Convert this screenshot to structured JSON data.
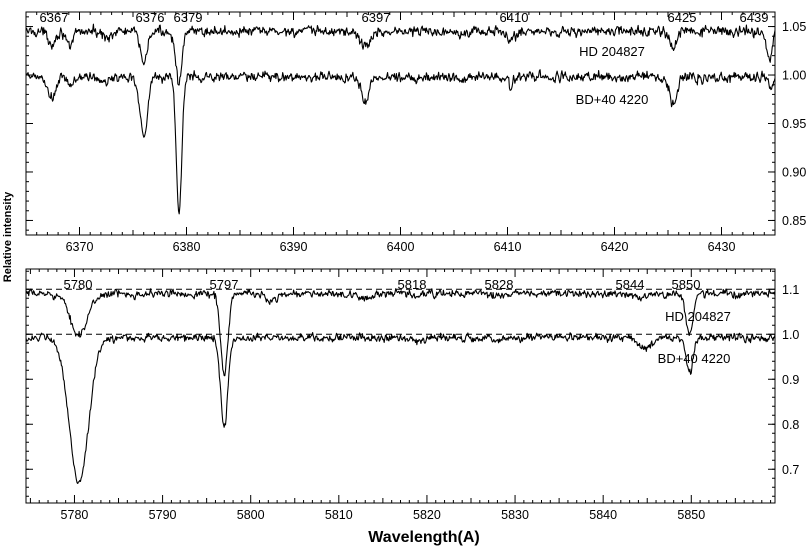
{
  "figure": {
    "ylabel": "Relative intensity",
    "xlabel": "Wavelength(A)"
  },
  "chart_data": [
    {
      "type": "line",
      "panel": "top",
      "xlim": [
        6365,
        6435
      ],
      "ylim": [
        0.835,
        1.065
      ],
      "xticks": [
        6370,
        6380,
        6390,
        6400,
        6410,
        6420,
        6430
      ],
      "yticks": [
        0.85,
        0.9,
        0.95,
        1.0,
        1.05
      ],
      "ytick_labels": [
        "0.85",
        "0.90",
        "0.95",
        "1.00",
        "1.05"
      ],
      "line_labels": [
        "6367",
        "6376",
        "6379",
        "6397",
        "6410",
        "6425",
        "6439"
      ],
      "series": [
        {
          "name": "HD 204827",
          "continuum": 1.045,
          "features": [
            [
              6367.4,
              0.012,
              0.35
            ],
            [
              6369.1,
              0.02,
              0.25
            ],
            [
              6372.5,
              0.006,
              0.4
            ],
            [
              6376.0,
              0.03,
              0.35
            ],
            [
              6379.3,
              0.052,
              0.3
            ],
            [
              6396.7,
              0.015,
              0.5
            ],
            [
              6410.2,
              0.009,
              0.4
            ],
            [
              6425.5,
              0.017,
              0.35
            ],
            [
              6434.5,
              0.03,
              0.25
            ]
          ],
          "noise": 0.0025
        },
        {
          "name": "BD+40 4220",
          "continuum": 0.998,
          "features": [
            [
              6367.4,
              0.022,
              0.4
            ],
            [
              6369.2,
              0.009,
              0.3
            ],
            [
              6372.3,
              0.007,
              0.4
            ],
            [
              6376.0,
              0.06,
              0.35
            ],
            [
              6379.3,
              0.14,
              0.25
            ],
            [
              6396.7,
              0.027,
              0.35
            ],
            [
              6410.2,
              0.007,
              0.4
            ],
            [
              6425.5,
              0.027,
              0.35
            ],
            [
              6434.6,
              0.012,
              0.25
            ]
          ],
          "noise": 0.0025
        }
      ]
    },
    {
      "type": "line",
      "panel": "bottom",
      "xlim": [
        5774.5,
        5859.5
      ],
      "ylim": [
        0.625,
        1.145
      ],
      "xticks": [
        5780,
        5790,
        5800,
        5810,
        5820,
        5830,
        5840,
        5850
      ],
      "yticks": [
        0.7,
        0.8,
        0.9,
        1.0,
        1.1
      ],
      "ytick_labels": [
        "0.7",
        "0.8",
        "0.9",
        "1.0",
        "1.1"
      ],
      "line_labels": [
        "5780",
        "5797",
        "5818",
        "5828",
        "5844",
        "5850"
      ],
      "reference_lines": [
        1.1,
        1.0
      ],
      "series": [
        {
          "name": "HD 204827",
          "continuum": 1.09,
          "features": [
            [
              5780.5,
              0.09,
              1.0
            ],
            [
              5797.0,
              0.18,
              0.4
            ],
            [
              5802.3,
              0.015,
              0.6
            ],
            [
              5812.5,
              0.008,
              1.5
            ],
            [
              5818.7,
              0.006,
              0.5
            ],
            [
              5828.2,
              0.006,
              0.6
            ],
            [
              5844.5,
              0.008,
              0.8
            ],
            [
              5849.8,
              0.09,
              0.4
            ]
          ],
          "noise": 0.004
        },
        {
          "name": "BD+40 4220",
          "continuum": 0.992,
          "features": [
            [
              5780.5,
              0.32,
              1.1
            ],
            [
              5797.0,
              0.2,
              0.4
            ],
            [
              5818.7,
              0.004,
              0.5
            ],
            [
              5828.2,
              0.004,
              0.6
            ],
            [
              5844.8,
              0.025,
              0.7
            ],
            [
              5849.8,
              0.08,
              0.4
            ]
          ],
          "noise": 0.004
        }
      ]
    }
  ]
}
